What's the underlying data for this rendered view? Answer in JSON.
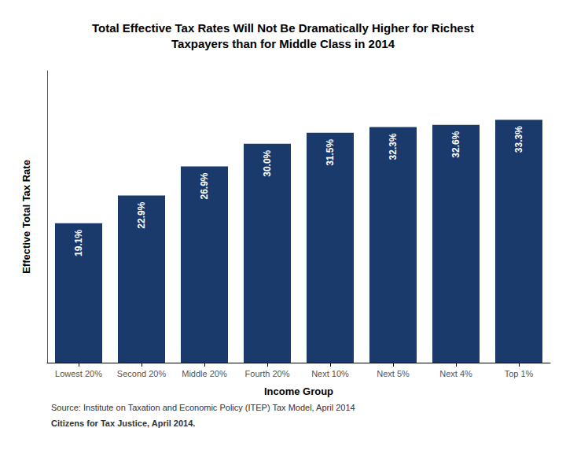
{
  "chart_data": {
    "type": "bar",
    "title": "Total Effective Tax Rates Will Not Be Dramatically Higher for Richest\nTaxpayers than for Middle Class in 2014",
    "categories": [
      "Lowest 20%",
      "Second 20%",
      "Middle 20%",
      "Fourth 20%",
      "Next 10%",
      "Next 5%",
      "Next 4%",
      "Top 1%"
    ],
    "values": [
      19.1,
      22.9,
      26.9,
      30.0,
      31.5,
      32.3,
      32.6,
      33.3
    ],
    "value_labels": [
      "19.1%",
      "22.9%",
      "26.9%",
      "30.0%",
      "31.5%",
      "32.3%",
      "32.6%",
      "33.3%"
    ],
    "data_labels": true,
    "color": "#1a3a6b",
    "xlabel": "Income Group",
    "ylabel": "Effective Total Tax Rate",
    "ylim": [
      0,
      40
    ],
    "tick_labels": "x",
    "grid": false,
    "annotations": [
      "Source: Institute on Taxation and Economic Policy (ITEP) Tax Model, April 2014",
      "Citizens for Tax Justice, April 2014."
    ]
  }
}
